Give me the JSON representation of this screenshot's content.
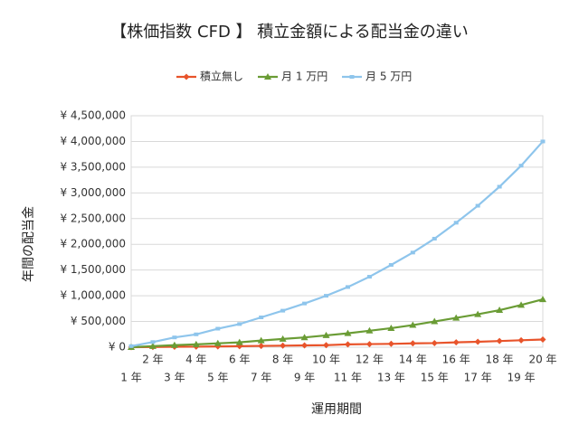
{
  "chart_data": {
    "type": "line",
    "title": "【株価指数 CFD 】 積立金額による配当金の違い",
    "x_label": "運用期間",
    "y_label": "年間の配当金",
    "categories": [
      "1 年",
      "2 年",
      "3 年",
      "4 年",
      "5 年",
      "6 年",
      "7 年",
      "8 年",
      "9 年",
      "10 年",
      "11 年",
      "12 年",
      "13 年",
      "14 年",
      "15 年",
      "16 年",
      "17 年",
      "18 年",
      "19 年",
      "20 年"
    ],
    "series": [
      {
        "name": "積立無し",
        "color": "#e8542b",
        "marker": "diamond",
        "values": [
          0,
          5000,
          8000,
          10000,
          15000,
          20000,
          25000,
          30000,
          35000,
          40000,
          55000,
          60000,
          65000,
          75000,
          80000,
          95000,
          105000,
          120000,
          135000,
          150000
        ]
      },
      {
        "name": "月 1 万円",
        "color": "#6a9c35",
        "marker": "triangle",
        "values": [
          0,
          20000,
          40000,
          55000,
          75000,
          95000,
          130000,
          160000,
          190000,
          230000,
          270000,
          320000,
          370000,
          430000,
          500000,
          570000,
          640000,
          720000,
          820000,
          930000
        ]
      },
      {
        "name": "月 5 万円",
        "color": "#8ec5ec",
        "marker": "square",
        "values": [
          20000,
          100000,
          190000,
          250000,
          360000,
          450000,
          580000,
          710000,
          850000,
          1000000,
          1170000,
          1370000,
          1600000,
          1840000,
          2110000,
          2420000,
          2750000,
          3120000,
          3530000,
          4000000
        ]
      }
    ],
    "ylim": [
      0,
      4500000
    ],
    "yticks": [
      {
        "value": 0,
        "label": "¥ 0"
      },
      {
        "value": 500000,
        "label": "¥ 500,000"
      },
      {
        "value": 1000000,
        "label": "¥ 1,000,000"
      },
      {
        "value": 1500000,
        "label": "¥ 1,500,000"
      },
      {
        "value": 2000000,
        "label": "¥ 2,000,000"
      },
      {
        "value": 2500000,
        "label": "¥ 2,500,000"
      },
      {
        "value": 3000000,
        "label": "¥ 3,000,000"
      },
      {
        "value": 3500000,
        "label": "¥ 3,500,000"
      },
      {
        "value": 4000000,
        "label": "¥ 4,000,000"
      },
      {
        "value": 4500000,
        "label": "¥ 4,500,000"
      }
    ],
    "grid": true,
    "legend": "top"
  }
}
